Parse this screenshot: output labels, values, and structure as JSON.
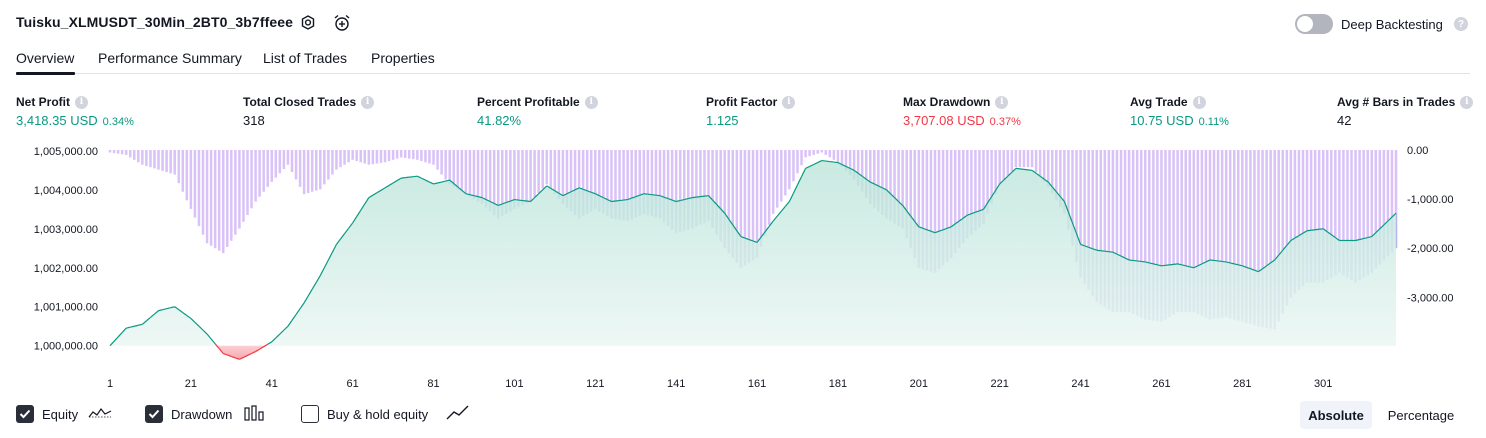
{
  "header": {
    "title": "Tuisku_XLMUSDT_30Min_2BT0_3b7ffeee",
    "settings_icon": "gear-icon",
    "alert_icon": "alarm-add-icon",
    "deep_backtesting_label": "Deep Backtesting",
    "deep_backtesting_enabled": false,
    "help_icon": "question-icon"
  },
  "tabs": [
    {
      "label": "Overview",
      "active": true
    },
    {
      "label": "Performance Summary",
      "active": false
    },
    {
      "label": "List of Trades",
      "active": false
    },
    {
      "label": "Properties",
      "active": false
    }
  ],
  "metrics": [
    {
      "label": "Net Profit",
      "value": "3,418.35 USD",
      "pct": "0.34%",
      "color": "#089981"
    },
    {
      "label": "Total Closed Trades",
      "value": "318",
      "pct": "",
      "color": "#131722"
    },
    {
      "label": "Percent Profitable",
      "value": "41.82%",
      "pct": "",
      "color": "#089981"
    },
    {
      "label": "Profit Factor",
      "value": "1.125",
      "pct": "",
      "color": "#089981"
    },
    {
      "label": "Max Drawdown",
      "value": "3,707.08 USD",
      "pct": "0.37%",
      "color": "#f23645"
    },
    {
      "label": "Avg Trade",
      "value": "10.75 USD",
      "pct": "0.11%",
      "color": "#089981"
    },
    {
      "label": "Avg # Bars in Trades",
      "value": "42",
      "pct": "",
      "color": "#131722"
    }
  ],
  "chart_data": {
    "type": "area",
    "x_ticks": [
      "1",
      "21",
      "41",
      "61",
      "81",
      "101",
      "121",
      "141",
      "161",
      "181",
      "201",
      "221",
      "241",
      "261",
      "281",
      "301"
    ],
    "xlim": [
      1,
      319
    ],
    "left_axis": {
      "ticks": [
        "1,005,000.00",
        "1,004,000.00",
        "1,003,000.00",
        "1,002,000.00",
        "1,001,000.00",
        "1,000,000.00"
      ],
      "ylim": [
        999300,
        1005150
      ]
    },
    "right_axis": {
      "ticks": [
        "0.00",
        "-1,000.00",
        "-2,000.00",
        "-3,000.00"
      ],
      "ylim": [
        -3707.08,
        0
      ]
    },
    "colors": {
      "equity_line": "#089981",
      "equity_positive_fill": "#d6efe9",
      "equity_negative": "#f23645",
      "drawdown_bar": "#d9c2f7",
      "drawdown_overlap": "#b5b3e8"
    },
    "series": [
      {
        "name": "Equity",
        "baseline": 1000000,
        "x": [
          1,
          5,
          9,
          13,
          17,
          21,
          25,
          29,
          33,
          37,
          41,
          45,
          49,
          53,
          57,
          61,
          65,
          69,
          73,
          77,
          81,
          85,
          89,
          93,
          97,
          101,
          105,
          109,
          113,
          117,
          121,
          125,
          129,
          133,
          137,
          141,
          145,
          149,
          153,
          157,
          161,
          165,
          169,
          173,
          177,
          181,
          185,
          189,
          193,
          197,
          201,
          205,
          209,
          213,
          217,
          221,
          225,
          229,
          233,
          237,
          241,
          245,
          249,
          253,
          257,
          261,
          265,
          269,
          273,
          277,
          281,
          285,
          289,
          293,
          297,
          301,
          305,
          309,
          313,
          319
        ],
        "values": [
          1000000,
          1000450,
          1000550,
          1000900,
          1001000,
          1000700,
          1000300,
          999800,
          999650,
          999850,
          1000100,
          1000500,
          1001100,
          1001800,
          1002600,
          1003150,
          1003800,
          1004050,
          1004300,
          1004350,
          1004150,
          1004250,
          1003900,
          1003800,
          1003600,
          1003750,
          1003700,
          1004100,
          1003850,
          1004050,
          1003900,
          1003700,
          1003750,
          1003900,
          1003850,
          1003700,
          1003800,
          1003850,
          1003400,
          1002800,
          1002650,
          1003200,
          1003700,
          1004550,
          1004750,
          1004700,
          1004500,
          1004200,
          1004000,
          1003600,
          1003050,
          1002900,
          1003050,
          1003350,
          1003500,
          1004150,
          1004550,
          1004500,
          1004200,
          1003700,
          1002600,
          1002450,
          1002400,
          1002200,
          1002150,
          1002050,
          1002100,
          1002000,
          1002200,
          1002150,
          1002050,
          1001900,
          1002200,
          1002700,
          1002950,
          1003000,
          1002700,
          1002700,
          1002800,
          1003400
        ]
      },
      {
        "name": "Drawdown",
        "x": [
          1,
          5,
          9,
          13,
          17,
          21,
          25,
          29,
          33,
          37,
          41,
          45,
          49,
          53,
          57,
          61,
          65,
          69,
          73,
          77,
          81,
          85,
          89,
          93,
          97,
          101,
          105,
          109,
          113,
          117,
          121,
          125,
          129,
          133,
          137,
          141,
          145,
          149,
          153,
          157,
          161,
          165,
          169,
          173,
          177,
          181,
          185,
          189,
          193,
          197,
          201,
          205,
          209,
          213,
          217,
          221,
          225,
          229,
          233,
          237,
          241,
          245,
          249,
          253,
          257,
          261,
          265,
          269,
          273,
          277,
          281,
          285,
          289,
          293,
          297,
          301,
          305,
          309,
          313,
          319
        ],
        "values": [
          -50,
          -100,
          -300,
          -400,
          -500,
          -1200,
          -1900,
          -2100,
          -1600,
          -1050,
          -650,
          -300,
          -900,
          -800,
          -400,
          -200,
          -300,
          -250,
          -150,
          -200,
          -300,
          -700,
          -900,
          -1100,
          -1400,
          -1200,
          -1050,
          -700,
          -1100,
          -1400,
          -1200,
          -1400,
          -1450,
          -1300,
          -1400,
          -1700,
          -1600,
          -1450,
          -2000,
          -2400,
          -2200,
          -1300,
          -800,
          -150,
          -50,
          -250,
          -600,
          -1100,
          -1400,
          -1600,
          -2400,
          -2500,
          -2200,
          -1800,
          -1500,
          -700,
          -350,
          -350,
          -750,
          -1300,
          -2600,
          -3100,
          -3300,
          -3300,
          -3450,
          -3500,
          -3300,
          -3300,
          -3450,
          -3400,
          -3500,
          -3600,
          -3650,
          -3000,
          -2700,
          -2700,
          -2500,
          -2700,
          -2500,
          -2000
        ]
      }
    ]
  },
  "legend": [
    {
      "label": "Equity",
      "checked": true,
      "icon": "equity-line-icon"
    },
    {
      "label": "Drawdown",
      "checked": true,
      "icon": "drawdown-bars-icon"
    },
    {
      "label": "Buy & hold equity",
      "checked": false,
      "icon": "trend-line-icon"
    }
  ],
  "scale_toggle": [
    {
      "label": "Absolute",
      "active": true
    },
    {
      "label": "Percentage",
      "active": false
    }
  ]
}
